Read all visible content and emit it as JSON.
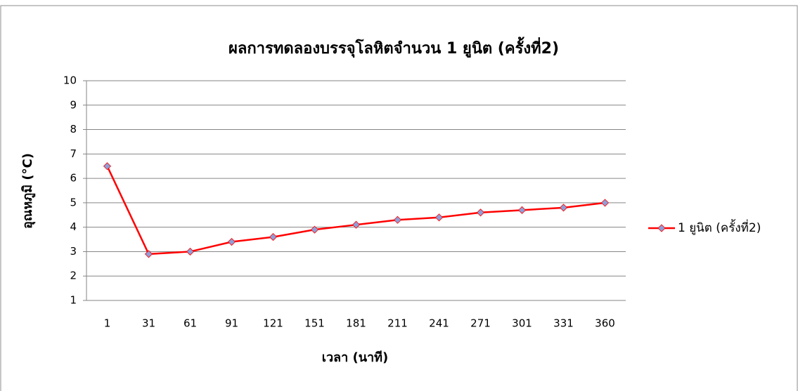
{
  "chart_data": {
    "type": "line",
    "title": "ผลการทดลองบรรจุโลหิตจำนวน 1 ยูนิต (ครั้งที่2)",
    "x_label": "เวลา (นาที)",
    "y_label": "อุณหภูมิ (°C)",
    "categories": [
      "1",
      "31",
      "61",
      "91",
      "121",
      "151",
      "181",
      "211",
      "241",
      "271",
      "301",
      "331",
      "360"
    ],
    "series": [
      {
        "name": "1 ยูนิต (ครั้งที่2)",
        "color": "#ff0000",
        "marker_color": "#8e9fd8",
        "values": [
          6.5,
          2.9,
          3.0,
          3.4,
          3.6,
          3.9,
          4.1,
          4.3,
          4.4,
          4.6,
          4.7,
          4.8,
          5.0
        ]
      }
    ],
    "ylim": [
      1,
      10
    ],
    "yticks": [
      1,
      2,
      3,
      4,
      5,
      6,
      7,
      8,
      9,
      10
    ],
    "grid": true,
    "legend": "right"
  }
}
